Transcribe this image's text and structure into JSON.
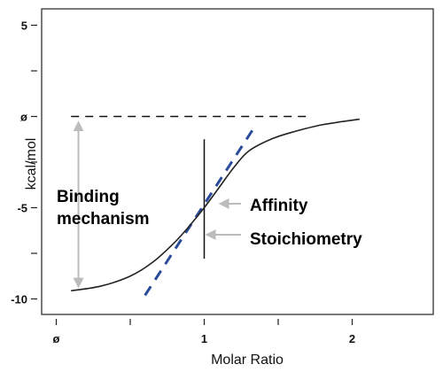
{
  "chart_data": {
    "type": "line",
    "title": "",
    "xlabel": "Molar Ratio",
    "ylabel": "kcal/mol",
    "xlim": [
      -0.05,
      2.35
    ],
    "ylim": [
      -10.3,
      5.3
    ],
    "x_ticks": [
      {
        "value": 0,
        "label": "ø"
      },
      {
        "value": 1,
        "label": "1"
      },
      {
        "value": 2,
        "label": "2"
      }
    ],
    "x_minor_ticks": [
      0.5,
      1.5
    ],
    "y_ticks": [
      {
        "value": 5,
        "label": "5"
      },
      {
        "value": 0,
        "label": "ø"
      },
      {
        "value": -5,
        "label": "-5"
      },
      {
        "value": -10,
        "label": "-10"
      }
    ],
    "y_minor_ticks": [
      2.5,
      -2.5,
      -7.5
    ],
    "grid": false,
    "series": [
      {
        "color": "#222222",
        "style": "solid",
        "x": [
          0.1,
          0.3,
          0.5,
          0.65,
          0.8,
          0.9,
          1.0,
          1.1,
          1.2,
          1.3,
          1.45,
          1.6,
          1.8,
          2.05
        ],
        "y": [
          -9.55,
          -9.3,
          -8.75,
          -8.0,
          -6.9,
          -6.0,
          -5.0,
          -3.9,
          -2.8,
          -1.9,
          -1.25,
          -0.85,
          -0.45,
          -0.15
        ]
      }
    ],
    "reference_lines": [
      {
        "kind": "baseline",
        "y": 0,
        "x_from": 0.1,
        "x_to": 1.7,
        "color": "#111111",
        "style": "dashed"
      },
      {
        "kind": "stoichiometry",
        "x": 1.0,
        "y_from": -7.8,
        "y_to": -1.25,
        "color": "#111111",
        "style": "solid"
      },
      {
        "kind": "slope",
        "x1": 0.6,
        "y1": -9.8,
        "x2": 1.35,
        "y2": -0.45,
        "color": "#2b4c9a",
        "style": "dashed"
      }
    ],
    "annotations": {
      "binding": {
        "text_line1": "Binding",
        "text_line2": "mechanism",
        "color": "#e8141e",
        "arrow_x": 0.15,
        "arrow_y_top": -0.15,
        "arrow_y_bottom": -9.5,
        "arrow_color": "#bcbcbc"
      },
      "affinity": {
        "text": "Affinity",
        "color": "#e8141e",
        "arrow_color": "#bcbcbc"
      },
      "stoichiometry": {
        "text": "Stoichiometry",
        "color": "#e8141e",
        "arrow_color": "#bcbcbc"
      }
    }
  }
}
